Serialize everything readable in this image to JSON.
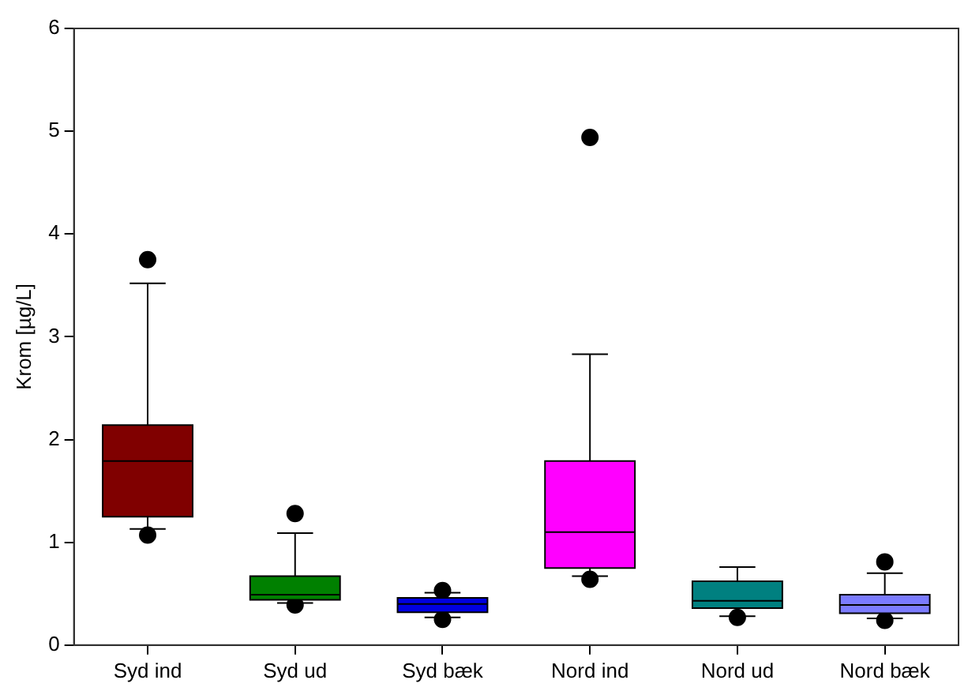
{
  "chart_data": {
    "type": "box",
    "ylabel": "Krom [µg/L]",
    "categories": [
      "Syd ind",
      "Syd ud",
      "Syd bæk",
      "Nord ind",
      "Nord ud",
      "Nord bæk"
    ],
    "colors": [
      "#800000",
      "#008000",
      "#0000e0",
      "#ff00ff",
      "#008080",
      "#7b7bff"
    ],
    "boxes": [
      {
        "low": 1.13,
        "q1": 1.25,
        "median": 1.79,
        "q3": 2.14,
        "high": 3.52,
        "outliers": [
          3.75,
          1.07
        ]
      },
      {
        "low": 0.41,
        "q1": 0.44,
        "median": 0.49,
        "q3": 0.67,
        "high": 1.09,
        "outliers": [
          1.28,
          0.39
        ]
      },
      {
        "low": 0.27,
        "q1": 0.32,
        "median": 0.4,
        "q3": 0.46,
        "high": 0.51,
        "outliers": [
          0.53,
          0.25
        ]
      },
      {
        "low": 0.67,
        "q1": 0.75,
        "median": 1.1,
        "q3": 1.79,
        "high": 2.83,
        "outliers": [
          4.94,
          0.64
        ]
      },
      {
        "low": 0.28,
        "q1": 0.36,
        "median": 0.43,
        "q3": 0.62,
        "high": 0.76,
        "outliers": [
          0.27
        ]
      },
      {
        "low": 0.26,
        "q1": 0.31,
        "median": 0.39,
        "q3": 0.49,
        "high": 0.7,
        "outliers": [
          0.81,
          0.24
        ]
      }
    ],
    "ylim": [
      0,
      6
    ],
    "yticks": [
      0,
      1,
      2,
      3,
      4,
      5,
      6
    ],
    "grid": false,
    "legend": false,
    "marker": "circle"
  }
}
